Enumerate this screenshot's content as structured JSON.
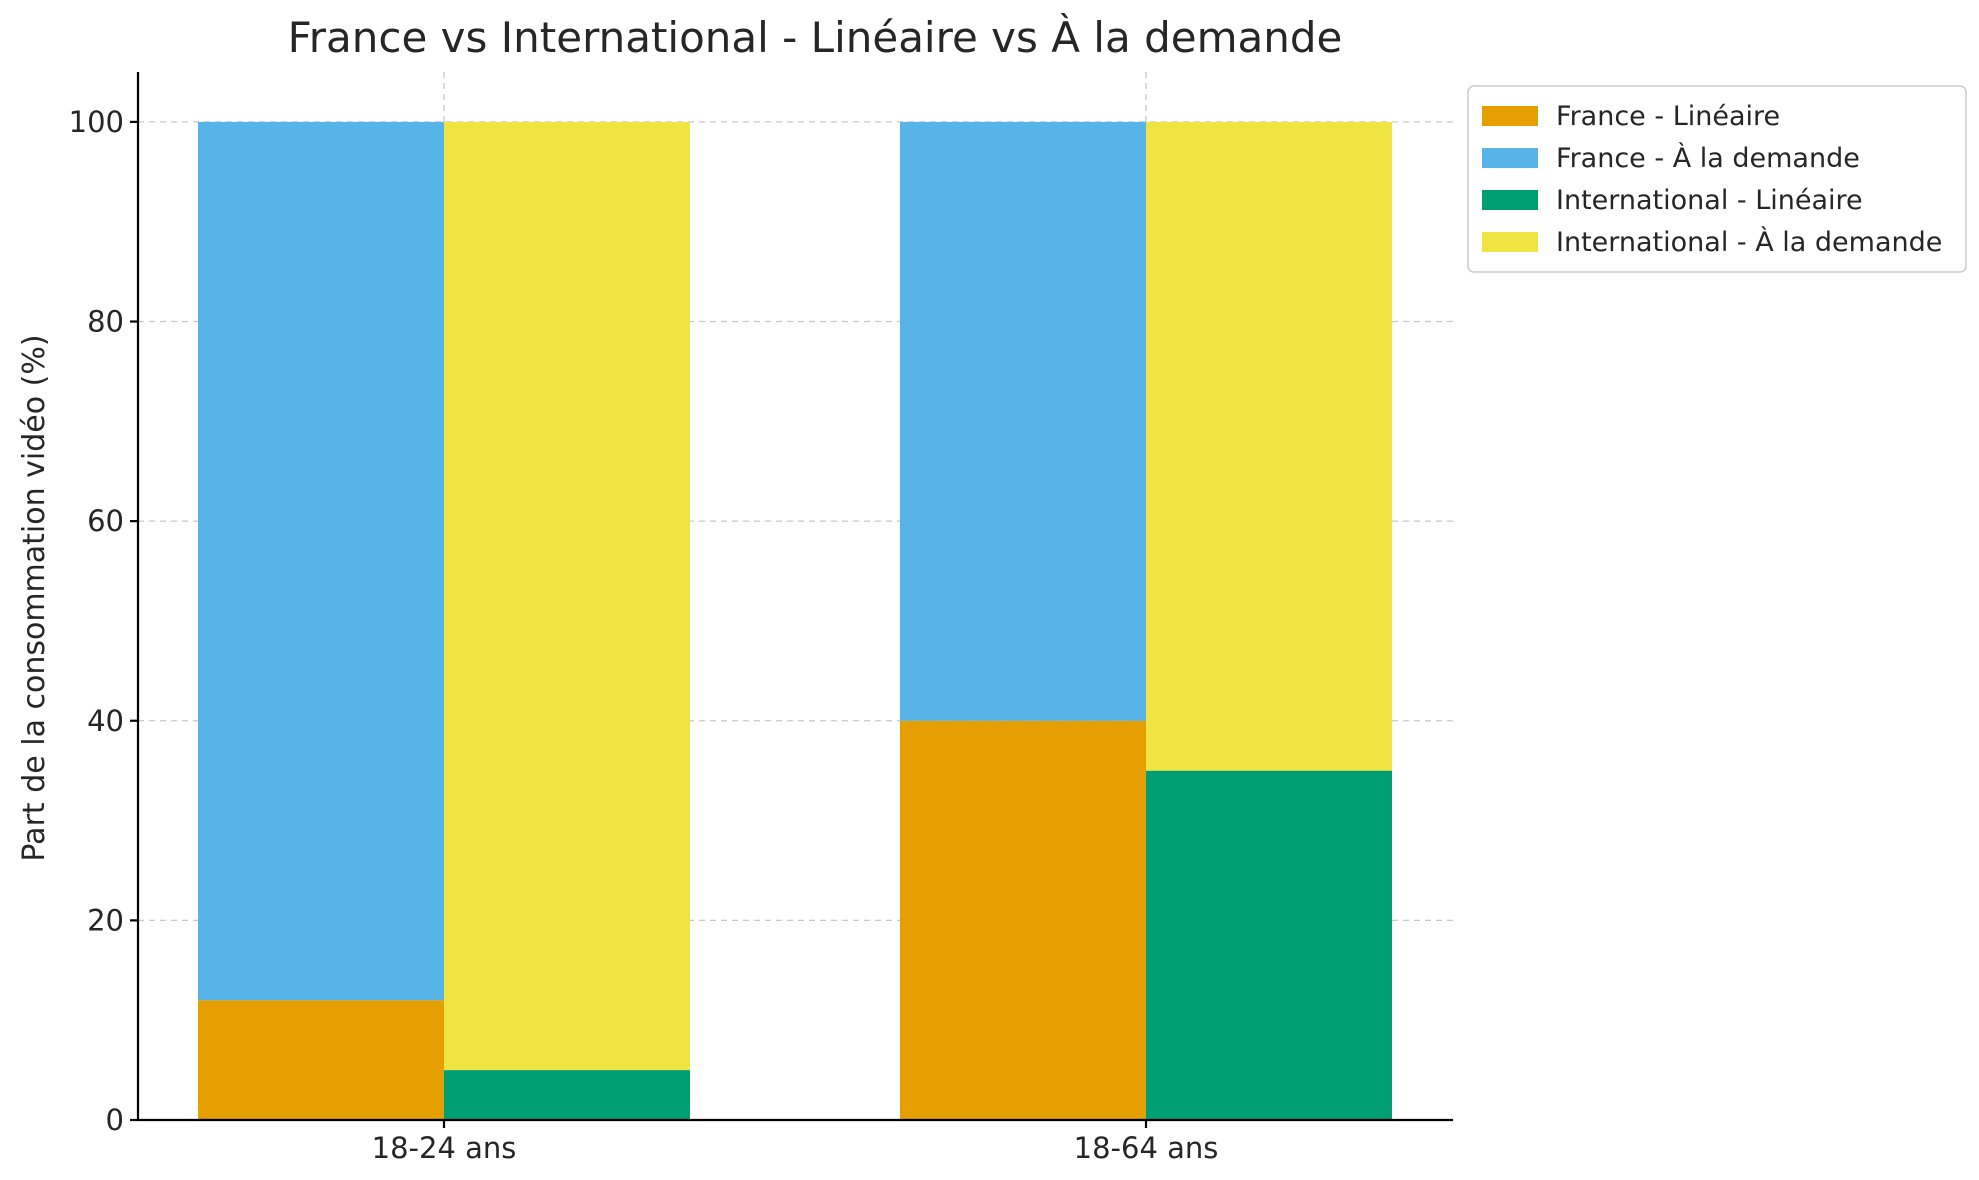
{
  "chart_data": {
    "type": "bar",
    "stacked": true,
    "title": "France vs International - Linéaire vs À la demande",
    "xlabel": "",
    "ylabel": "Part de la consommation vidéo (%)",
    "categories": [
      "18-24 ans",
      "18-64 ans"
    ],
    "ylim": [
      0,
      105
    ],
    "yticks": [
      0,
      20,
      40,
      60,
      80,
      100
    ],
    "grid": true,
    "legend_position": "outside top-right",
    "groups": [
      {
        "name": "France",
        "series": [
          {
            "name": "France - Linéaire",
            "color": "#E69F00",
            "values": [
              12,
              40
            ]
          },
          {
            "name": "France - À la demande",
            "color": "#56B4E9",
            "values": [
              88,
              60
            ]
          }
        ]
      },
      {
        "name": "International",
        "series": [
          {
            "name": "International - Linéaire",
            "color": "#009E73",
            "values": [
              5,
              35
            ]
          },
          {
            "name": "International - À la demande",
            "color": "#F0E442",
            "values": [
              95,
              65
            ]
          }
        ]
      }
    ]
  }
}
